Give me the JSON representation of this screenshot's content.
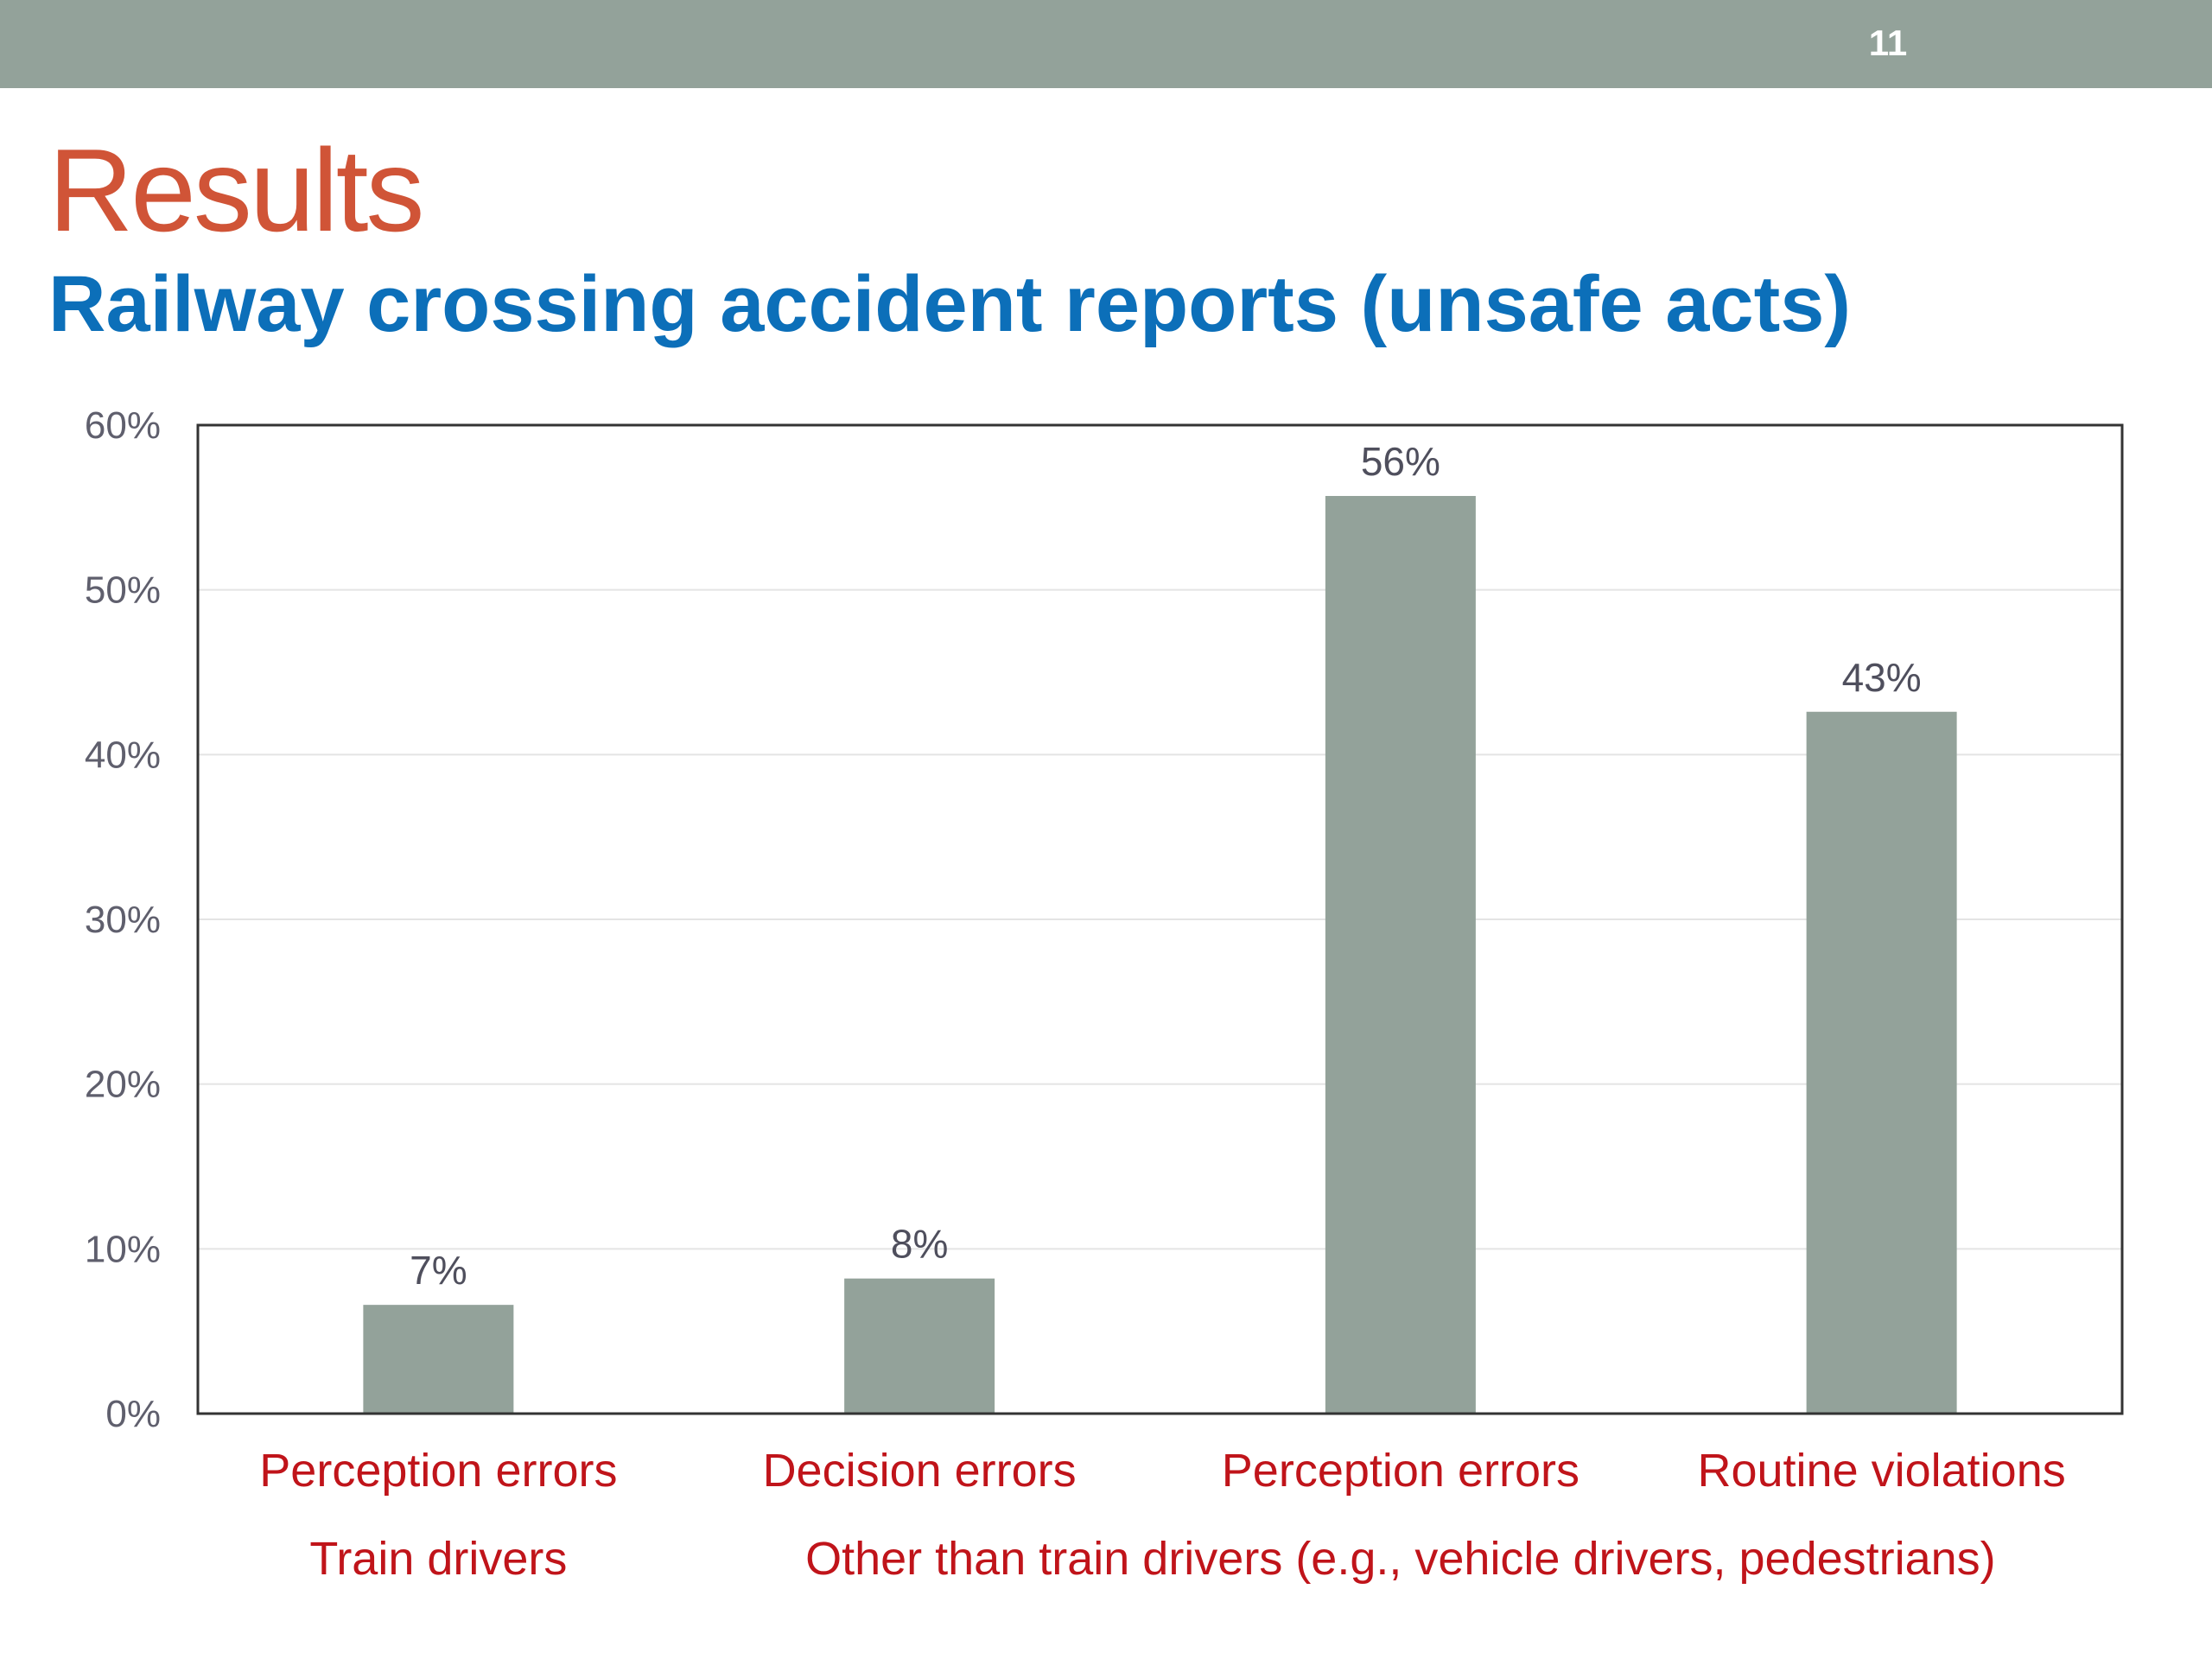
{
  "slide": {
    "number": "11",
    "title": "Results",
    "subtitle": "Railway crossing accident reports (unsafe acts)"
  },
  "colors": {
    "bar": "#93a29a",
    "top_bar": "#93a29a",
    "title": "#d05437",
    "subtitle": "#0c6fb9",
    "category_text": "#c0141a",
    "gridline": "#e4e4e4"
  },
  "chart_data": {
    "type": "bar",
    "categories": [
      "Perception errors",
      "Decision errors",
      "Perception errors",
      "Routine violations"
    ],
    "groups": [
      {
        "label": "Train drivers",
        "categories": [
          0
        ]
      },
      {
        "label": "Other than train drivers (e.g., vehicle drivers, pedestrians)",
        "categories": [
          1,
          2,
          3
        ]
      }
    ],
    "values": [
      6.6,
      8.2,
      55.7,
      42.6
    ],
    "data_labels": [
      "7%",
      "8%",
      "56%",
      "43%"
    ],
    "ylim": [
      0,
      60
    ],
    "y_ticks": [
      0,
      10,
      20,
      30,
      40,
      50,
      60
    ],
    "y_tick_labels": [
      "0%",
      "10%",
      "20%",
      "30%",
      "40%",
      "50%",
      "60%"
    ],
    "title": "",
    "xlabel": "",
    "ylabel": "",
    "grid": true,
    "legend": "none"
  }
}
